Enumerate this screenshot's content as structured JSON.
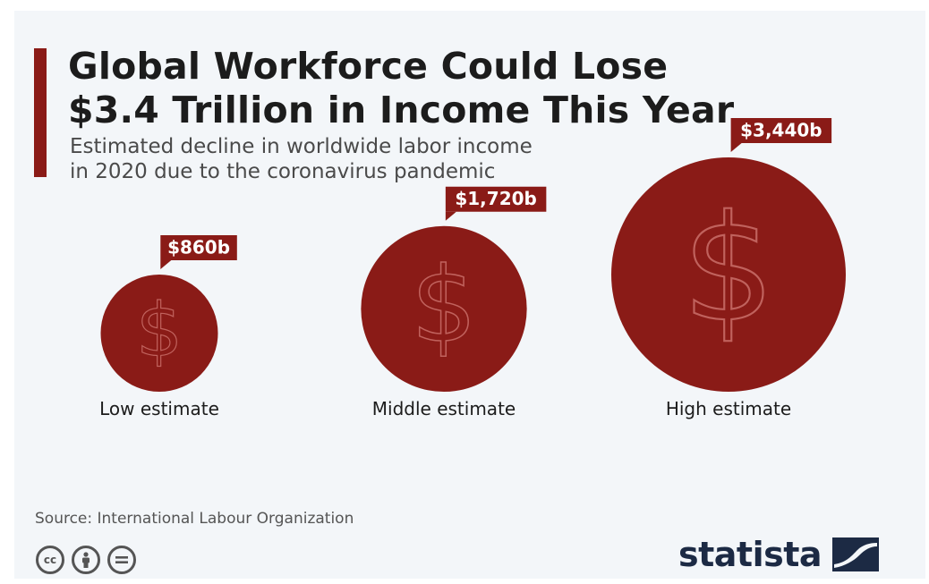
{
  "title": "Global Workforce Could Lose\n$3.4 Trillion in Income This Year",
  "subtitle": "Estimated decline in worldwide labor income\nin 2020 due to the coronavirus pandemic",
  "source": "Source: International Labour Organization",
  "brand": "statista",
  "license_icons": [
    "cc-icon",
    "by-person-icon",
    "nd-equals-icon"
  ],
  "colors": {
    "accent": "#8a1b17",
    "background": "#f3f6f9",
    "text": "#1c1c1c",
    "brand": "#1c2a44"
  },
  "chart_data": {
    "type": "bubble",
    "unit": "$ billions",
    "categories": [
      "Low estimate",
      "Middle estimate",
      "High estimate"
    ],
    "values": [
      860,
      1720,
      3440
    ],
    "value_labels": [
      "$860b",
      "$1,720b",
      "$3,440b"
    ],
    "symbol": "$"
  }
}
